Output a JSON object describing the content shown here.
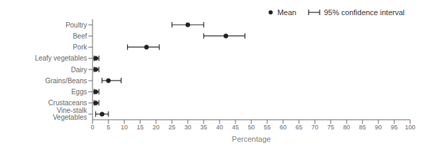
{
  "chart_data": {
    "type": "dot",
    "orientation": "horizontal",
    "categories": [
      "Poultry",
      "Beef",
      "Pork",
      "Leafy vegetables",
      "Dairy",
      "Grains/Beans",
      "Eggs",
      "Crustaceans",
      "Vine-stalk Vegetables"
    ],
    "series": [
      {
        "name": "Mean",
        "type": "scatter",
        "marker": "o",
        "values": [
          30,
          42,
          17,
          1,
          1,
          5,
          1,
          1,
          3
        ]
      },
      {
        "name": "95% confidence interval",
        "type": "interval",
        "ci_low": [
          25,
          35,
          11,
          0.5,
          0.5,
          3,
          0.5,
          0.5,
          1
        ],
        "ci_high": [
          35,
          48,
          21,
          2,
          2,
          9,
          2,
          2,
          5
        ]
      }
    ],
    "xlabel": "Percentage",
    "xlim": [
      0,
      100
    ],
    "xticks": [
      0,
      5,
      10,
      15,
      20,
      25,
      30,
      35,
      40,
      45,
      50,
      55,
      60,
      65,
      70,
      75,
      80,
      85,
      90,
      95,
      100
    ],
    "color": "#222222",
    "legend": "upper right",
    "grid": false
  }
}
